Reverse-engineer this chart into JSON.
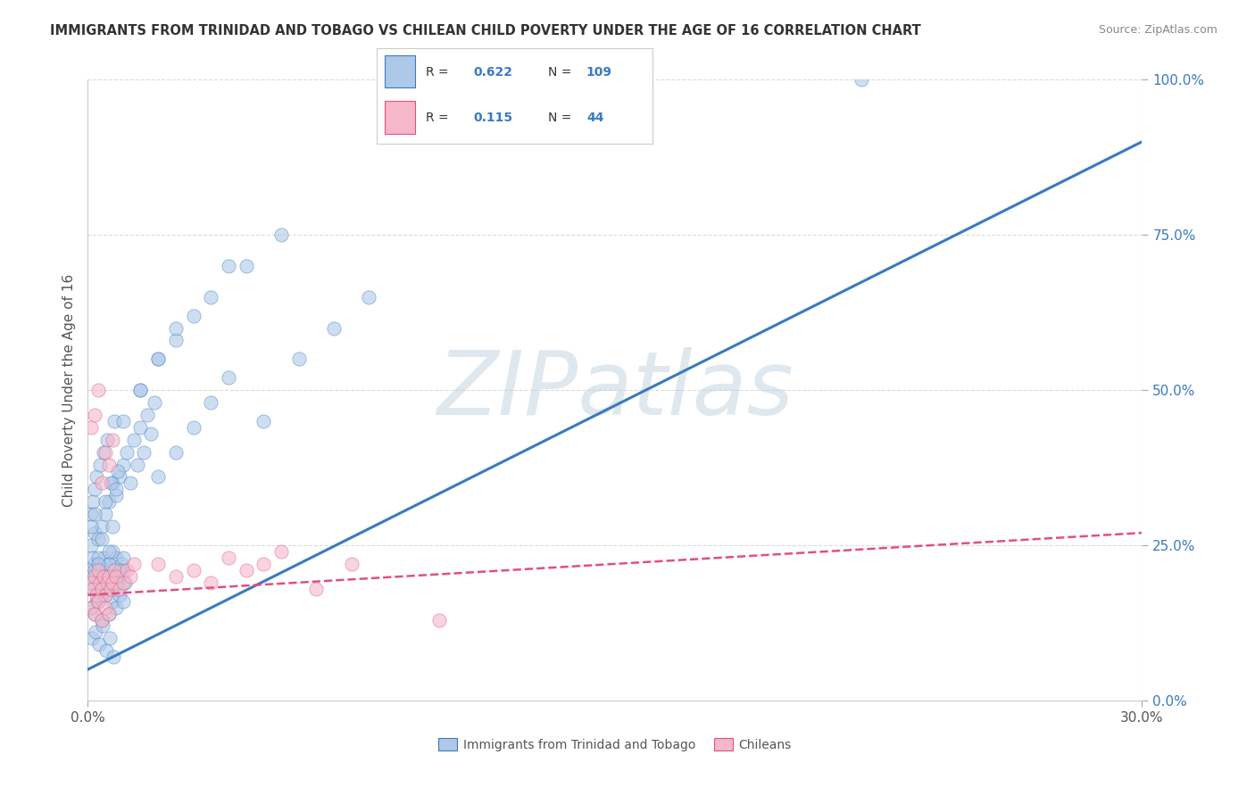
{
  "title": "IMMIGRANTS FROM TRINIDAD AND TOBAGO VS CHILEAN CHILD POVERTY UNDER THE AGE OF 16 CORRELATION CHART",
  "source": "Source: ZipAtlas.com",
  "ylabel": "Child Poverty Under the Age of 16",
  "xlim": [
    0.0,
    30.0
  ],
  "ylim": [
    0.0,
    100.0
  ],
  "x_tick_positions": [
    0.0,
    30.0
  ],
  "x_tick_labels": [
    "0.0%",
    "30.0%"
  ],
  "y_tick_positions": [
    0.0,
    25.0,
    50.0,
    75.0,
    100.0
  ],
  "y_tick_labels": [
    "0.0%",
    "25.0%",
    "50.0%",
    "75.0%",
    "100.0%"
  ],
  "blue_R": 0.622,
  "blue_N": 109,
  "pink_R": 0.115,
  "pink_N": 44,
  "blue_dot_color": "#aec8e8",
  "blue_line_color": "#3a7abf",
  "pink_dot_color": "#f4b8c8",
  "pink_line_color": "#e05080",
  "legend_label_blue": "Immigrants from Trinidad and Tobago",
  "legend_label_pink": "Chileans",
  "watermark": "ZIPatlas",
  "title_color": "#333333",
  "axis_label_color": "#555555",
  "tick_color_right": "#3a7abf",
  "grid_color": "#cccccc",
  "background_color": "#ffffff",
  "blue_line_x": [
    0.0,
    30.0
  ],
  "blue_line_y": [
    5.0,
    90.0
  ],
  "pink_line_x": [
    0.0,
    30.0
  ],
  "pink_line_y": [
    17.0,
    27.0
  ],
  "blue_scatter_x": [
    0.1,
    0.15,
    0.2,
    0.25,
    0.3,
    0.35,
    0.4,
    0.45,
    0.5,
    0.55,
    0.6,
    0.65,
    0.7,
    0.75,
    0.8,
    0.85,
    0.9,
    0.95,
    1.0,
    1.05,
    0.1,
    0.15,
    0.2,
    0.3,
    0.4,
    0.5,
    0.6,
    0.7,
    0.8,
    0.9,
    1.0,
    1.1,
    1.2,
    1.3,
    1.4,
    1.5,
    1.6,
    1.7,
    1.8,
    1.9,
    0.1,
    0.2,
    0.3,
    0.4,
    0.5,
    0.6,
    0.7,
    0.8,
    0.9,
    1.0,
    0.1,
    0.2,
    0.3,
    0.4,
    0.5,
    0.6,
    0.7,
    0.8,
    0.9,
    1.0,
    0.1,
    0.15,
    0.2,
    0.25,
    0.35,
    0.45,
    0.55,
    0.65,
    0.75,
    0.85,
    2.0,
    2.5,
    3.0,
    3.5,
    4.0,
    5.0,
    6.0,
    7.0,
    8.0,
    0.1,
    0.2,
    0.3,
    0.4,
    0.5,
    0.6,
    0.7,
    0.8,
    1.5,
    2.0,
    2.5,
    3.0,
    4.0,
    1.0,
    1.5,
    2.0,
    2.5,
    3.5,
    4.5,
    5.5,
    22.0,
    0.12,
    0.22,
    0.32,
    0.42,
    0.52,
    0.62,
    0.72
  ],
  "blue_scatter_y": [
    20.0,
    18.0,
    22.0,
    16.0,
    19.0,
    21.0,
    17.0,
    23.0,
    20.0,
    18.0,
    22.0,
    19.0,
    21.0,
    20.0,
    23.0,
    18.0,
    20.0,
    22.0,
    21.0,
    19.0,
    25.0,
    23.0,
    27.0,
    26.0,
    28.0,
    30.0,
    32.0,
    35.0,
    33.0,
    36.0,
    38.0,
    40.0,
    35.0,
    42.0,
    38.0,
    44.0,
    40.0,
    46.0,
    43.0,
    48.0,
    15.0,
    14.0,
    16.0,
    13.0,
    17.0,
    14.0,
    16.0,
    15.0,
    17.0,
    16.0,
    19.0,
    21.0,
    23.0,
    18.0,
    20.0,
    22.0,
    24.0,
    19.0,
    21.0,
    23.0,
    30.0,
    32.0,
    34.0,
    36.0,
    38.0,
    40.0,
    42.0,
    35.0,
    45.0,
    37.0,
    36.0,
    40.0,
    44.0,
    48.0,
    52.0,
    45.0,
    55.0,
    60.0,
    65.0,
    28.0,
    30.0,
    22.0,
    26.0,
    32.0,
    24.0,
    28.0,
    34.0,
    50.0,
    55.0,
    58.0,
    62.0,
    70.0,
    45.0,
    50.0,
    55.0,
    60.0,
    65.0,
    70.0,
    75.0,
    100.0,
    10.0,
    11.0,
    9.0,
    12.0,
    8.0,
    10.0,
    7.0
  ],
  "pink_scatter_x": [
    0.1,
    0.15,
    0.2,
    0.25,
    0.3,
    0.35,
    0.4,
    0.45,
    0.5,
    0.55,
    0.6,
    0.65,
    0.7,
    0.75,
    0.8,
    0.9,
    1.0,
    1.1,
    1.2,
    1.3,
    0.1,
    0.2,
    0.3,
    0.4,
    0.5,
    0.6,
    2.0,
    2.5,
    3.0,
    4.0,
    5.0,
    3.5,
    4.5,
    7.5,
    10.0,
    5.5,
    6.5,
    0.1,
    0.2,
    0.3,
    0.4,
    0.5,
    0.6,
    0.7
  ],
  "pink_scatter_y": [
    19.0,
    18.0,
    20.0,
    17.0,
    21.0,
    19.0,
    18.0,
    20.0,
    17.0,
    19.0,
    20.0,
    18.0,
    19.0,
    21.0,
    20.0,
    18.0,
    19.0,
    21.0,
    20.0,
    22.0,
    15.0,
    14.0,
    16.0,
    13.0,
    15.0,
    14.0,
    22.0,
    20.0,
    21.0,
    23.0,
    22.0,
    19.0,
    21.0,
    22.0,
    13.0,
    24.0,
    18.0,
    44.0,
    46.0,
    50.0,
    35.0,
    40.0,
    38.0,
    42.0
  ]
}
